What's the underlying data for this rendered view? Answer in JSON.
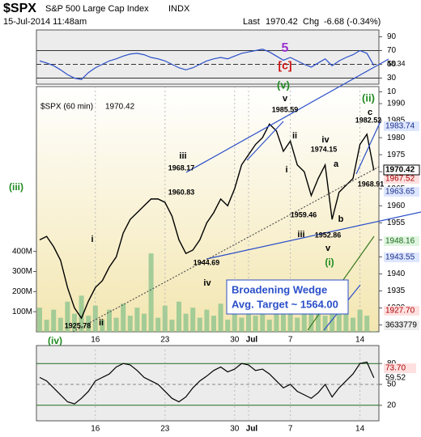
{
  "header": {
    "symbol": "$SPX",
    "name": "S&P 500 Large Cap Index",
    "exchange": "INDX",
    "datetime": "15-Jul-2014 11:48am",
    "last_label": "Last",
    "last": 1970.42,
    "chg_label": "Chg",
    "chg": "-6.68 (-0.34%)"
  },
  "chart_data": [
    {
      "type": "line",
      "color": "#2b4fc9",
      "categories": [
        null,
        null,
        null,
        null,
        null,
        null,
        null,
        null,
        null,
        null,
        null,
        null,
        null,
        null,
        null,
        null,
        null,
        null,
        null,
        null,
        null,
        null,
        null,
        null,
        null,
        null,
        null,
        null,
        null,
        null,
        null,
        null,
        null,
        null,
        null,
        null,
        null,
        null,
        null,
        null,
        null,
        null,
        null,
        null,
        null,
        null,
        null,
        null,
        null
      ],
      "values": [
        55,
        52,
        48,
        42,
        35,
        30,
        28,
        38,
        45,
        50,
        55,
        58,
        62,
        65,
        66,
        64,
        60,
        58,
        55,
        50,
        45,
        42,
        45,
        50,
        55,
        58,
        60,
        58,
        62,
        66,
        68,
        70,
        72,
        68,
        62,
        56,
        60,
        55,
        50,
        46,
        52,
        58,
        48,
        55,
        60,
        64,
        70,
        66,
        48.34
      ],
      "ylim": [
        0,
        100
      ],
      "yticks": [
        10,
        30,
        50,
        70,
        90
      ],
      "annotations": [
        "5",
        "[c]"
      ]
    },
    {
      "type": "line",
      "color": "#000000",
      "series_label": "$SPX (60 min)",
      "categories": [
        null,
        null,
        null,
        null,
        null,
        null,
        null,
        null,
        "16",
        null,
        null,
        null,
        null,
        null,
        null,
        null,
        null,
        null,
        "23",
        null,
        null,
        null,
        null,
        null,
        null,
        null,
        null,
        null,
        "30",
        null,
        "Jul",
        null,
        null,
        null,
        null,
        null,
        "7",
        null,
        null,
        null,
        null,
        null,
        null,
        null,
        null,
        null,
        "14",
        null,
        null
      ],
      "values": [
        1950,
        1951,
        1948,
        1944,
        1936,
        1930,
        1927,
        1932,
        1936,
        1938,
        1942,
        1945,
        1952,
        1956,
        1958,
        1960,
        1962,
        1962,
        1961,
        1957,
        1950,
        1946,
        1947,
        1950,
        1955,
        1958,
        1962,
        1960,
        1965,
        1972,
        1975,
        1978,
        1980,
        1984,
        1982,
        1976,
        1979,
        1972,
        1970,
        1963,
        1968,
        1972,
        1956,
        1964,
        1966,
        1968,
        1978,
        1981,
        1970.42
      ],
      "ylim": [
        1923,
        1995
      ],
      "yticks": [
        1925,
        1930,
        1935,
        1940,
        1945,
        1950,
        1955,
        1960,
        1965,
        1970,
        1975,
        1980,
        1985,
        1990
      ],
      "annotations": [
        "(v)",
        "v",
        "1985.59",
        "ii",
        "iv",
        "1974.15",
        "i",
        "a",
        "iii",
        "1968.17",
        "1960.83",
        "(iii)",
        "i",
        "1944.69",
        "iv",
        "1925.78",
        "ii",
        "(iv)",
        "(ii)",
        "c",
        "1982.52",
        "1968.91",
        "1959.46",
        "iii",
        "1952.86",
        "b",
        "v",
        "(i)"
      ],
      "right_labels": [
        "1983.74",
        "1967.52",
        "1963.65",
        "1948.16",
        "1943.55",
        "1927.70"
      ],
      "note": [
        "Broadening Wedge",
        "Avg. Target ~ 1564.00"
      ]
    },
    {
      "type": "bar",
      "color": "#8fc48f",
      "categories": [
        null,
        null,
        null,
        null,
        null,
        null,
        null,
        null,
        null,
        null,
        null,
        null,
        null,
        null,
        null,
        null,
        null,
        null,
        null,
        null,
        null,
        null,
        null,
        null,
        null,
        null,
        null,
        null,
        null,
        null,
        null,
        null,
        null,
        null,
        null,
        null,
        null,
        null,
        null,
        null,
        null,
        null,
        null,
        null,
        null,
        null,
        null,
        null,
        null
      ],
      "values": [
        120000000,
        60000000,
        110000000,
        70000000,
        150000000,
        90000000,
        180000000,
        80000000,
        130000000,
        60000000,
        110000000,
        70000000,
        140000000,
        80000000,
        120000000,
        90000000,
        390000000,
        70000000,
        130000000,
        60000000,
        150000000,
        90000000,
        120000000,
        70000000,
        110000000,
        80000000,
        140000000,
        60000000,
        120000000,
        70000000,
        130000000,
        80000000,
        110000000,
        60000000,
        140000000,
        90000000,
        120000000,
        70000000,
        160000000,
        90000000,
        130000000,
        80000000,
        170000000,
        90000000,
        120000000,
        70000000,
        110000000,
        80000000,
        3633779
      ],
      "ylim": [
        0,
        1220000000
      ],
      "yticks": [
        {
          "value": 100000000,
          "label": "100M"
        },
        {
          "value": 200000000,
          "label": "200M"
        },
        {
          "value": 300000000,
          "label": "300M"
        },
        {
          "value": 400000000,
          "label": "400M"
        }
      ]
    },
    {
      "type": "line",
      "color": "#000000",
      "categories": [
        null,
        null,
        null,
        null,
        null,
        null,
        null,
        null,
        "16",
        null,
        null,
        null,
        null,
        null,
        null,
        null,
        null,
        null,
        "23",
        null,
        null,
        null,
        null,
        null,
        null,
        null,
        null,
        null,
        "30",
        null,
        "Jul",
        null,
        null,
        null,
        null,
        null,
        "7",
        null,
        null,
        null,
        null,
        null,
        null,
        null,
        null,
        null,
        "14",
        null,
        null
      ],
      "values": [
        60,
        55,
        45,
        35,
        25,
        22,
        30,
        40,
        55,
        60,
        65,
        75,
        80,
        78,
        70,
        60,
        55,
        50,
        40,
        30,
        25,
        32,
        45,
        55,
        62,
        70,
        75,
        68,
        72,
        80,
        78,
        70,
        72,
        65,
        55,
        45,
        50,
        40,
        35,
        30,
        38,
        50,
        32,
        45,
        55,
        65,
        80,
        82,
        59.52
      ],
      "ylim": [
        0,
        100
      ],
      "yticks": [
        20,
        50,
        80
      ],
      "signal_last": {
        "value": 73.7,
        "label": "73.70"
      }
    }
  ]
}
